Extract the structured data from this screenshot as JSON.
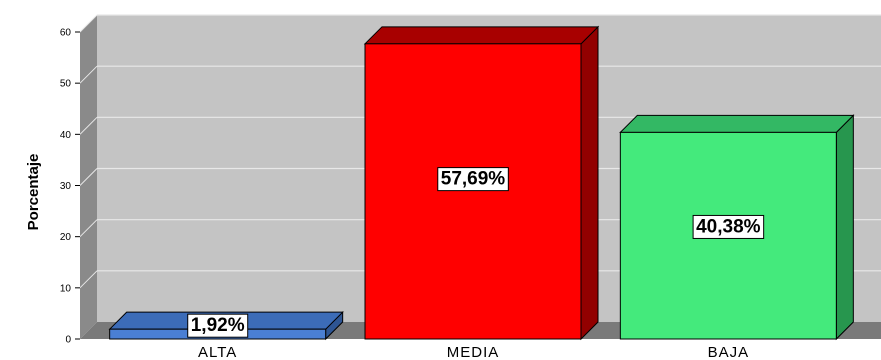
{
  "chart_data": {
    "type": "bar",
    "ylabel": "Porcentaje",
    "xlabel": "",
    "categories": [
      "ALTA",
      "MEDIA",
      "BAJA"
    ],
    "values": [
      1.92,
      57.69,
      40.38
    ],
    "data_labels": [
      "1,92%",
      "57,69%",
      "40,38%"
    ],
    "ylim": [
      0,
      60
    ],
    "yticks": [
      0,
      10,
      20,
      30,
      40,
      50,
      60
    ],
    "grid": true,
    "style": "3d",
    "colors": {
      "front": [
        "#4a7fd4",
        "#ff0000",
        "#44ea7c"
      ],
      "top": [
        "#3c6cb8",
        "#a80000",
        "#33b864"
      ],
      "side": [
        "#2e5593",
        "#920000",
        "#27964e"
      ],
      "plot_background": "#c4c4c4",
      "gridline": "#e8e8e8",
      "floor": "#7a7a7a",
      "wall_side": "#8a8a8a"
    }
  }
}
